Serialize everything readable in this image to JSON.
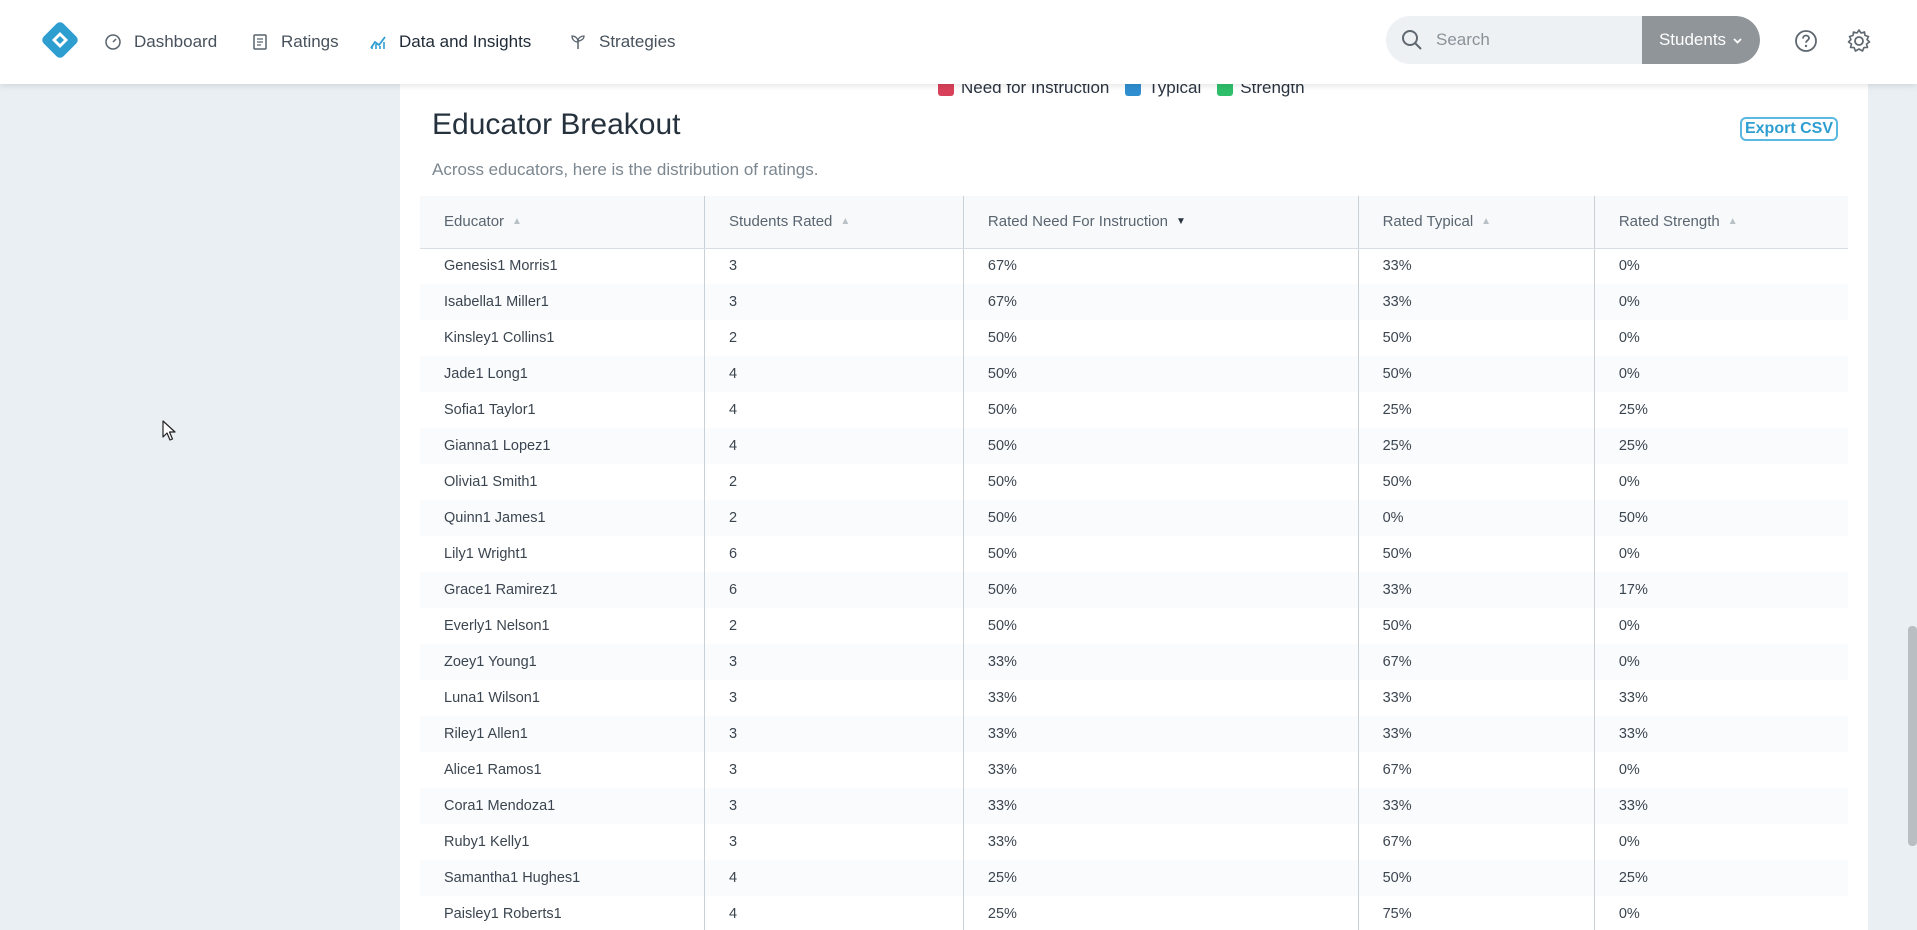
{
  "nav": {
    "items": [
      {
        "label": "Dashboard",
        "icon": "dashboard-gauge-icon"
      },
      {
        "label": "Ratings",
        "icon": "ratings-list-icon"
      },
      {
        "label": "Data and Insights",
        "icon": "insights-chart-icon",
        "active": true
      },
      {
        "label": "Strategies",
        "icon": "strategies-sprout-icon"
      }
    ],
    "search_placeholder": "Search",
    "scope_label": "Students",
    "colors": {
      "accent": "#2e9ed1",
      "scope_button": "#8f9599"
    }
  },
  "legend": {
    "items": [
      {
        "label": "Need for Instruction",
        "color": "#d9415a"
      },
      {
        "label": "Typical",
        "color": "#2f8ed0"
      },
      {
        "label": "Strength",
        "color": "#2fbf6b"
      }
    ]
  },
  "breakout": {
    "title": "Educator Breakout",
    "subtitle": "Across educators, here is the distribution of ratings.",
    "export_label": "Export CSV",
    "columns": [
      "Educator",
      "Students Rated",
      "Rated Need For Instruction",
      "Rated Typical",
      "Rated Strength"
    ],
    "sorted_column": "Rated Need For Instruction",
    "rows": [
      [
        "Genesis1 Morris1",
        "3",
        "67%",
        "33%",
        "0%"
      ],
      [
        "Isabella1 Miller1",
        "3",
        "67%",
        "33%",
        "0%"
      ],
      [
        "Kinsley1 Collins1",
        "2",
        "50%",
        "50%",
        "0%"
      ],
      [
        "Jade1 Long1",
        "4",
        "50%",
        "50%",
        "0%"
      ],
      [
        "Sofia1 Taylor1",
        "4",
        "50%",
        "25%",
        "25%"
      ],
      [
        "Gianna1 Lopez1",
        "4",
        "50%",
        "25%",
        "25%"
      ],
      [
        "Olivia1 Smith1",
        "2",
        "50%",
        "50%",
        "0%"
      ],
      [
        "Quinn1 James1",
        "2",
        "50%",
        "0%",
        "50%"
      ],
      [
        "Lily1 Wright1",
        "6",
        "50%",
        "50%",
        "0%"
      ],
      [
        "Grace1 Ramirez1",
        "6",
        "50%",
        "33%",
        "17%"
      ],
      [
        "Everly1 Nelson1",
        "2",
        "50%",
        "50%",
        "0%"
      ],
      [
        "Zoey1 Young1",
        "3",
        "33%",
        "67%",
        "0%"
      ],
      [
        "Luna1 Wilson1",
        "3",
        "33%",
        "33%",
        "33%"
      ],
      [
        "Riley1 Allen1",
        "3",
        "33%",
        "33%",
        "33%"
      ],
      [
        "Alice1 Ramos1",
        "3",
        "33%",
        "67%",
        "0%"
      ],
      [
        "Cora1 Mendoza1",
        "3",
        "33%",
        "33%",
        "33%"
      ],
      [
        "Ruby1 Kelly1",
        "3",
        "33%",
        "67%",
        "0%"
      ],
      [
        "Samantha1 Hughes1",
        "4",
        "25%",
        "50%",
        "25%"
      ],
      [
        "Paisley1 Roberts1",
        "4",
        "25%",
        "75%",
        "0%"
      ]
    ]
  }
}
